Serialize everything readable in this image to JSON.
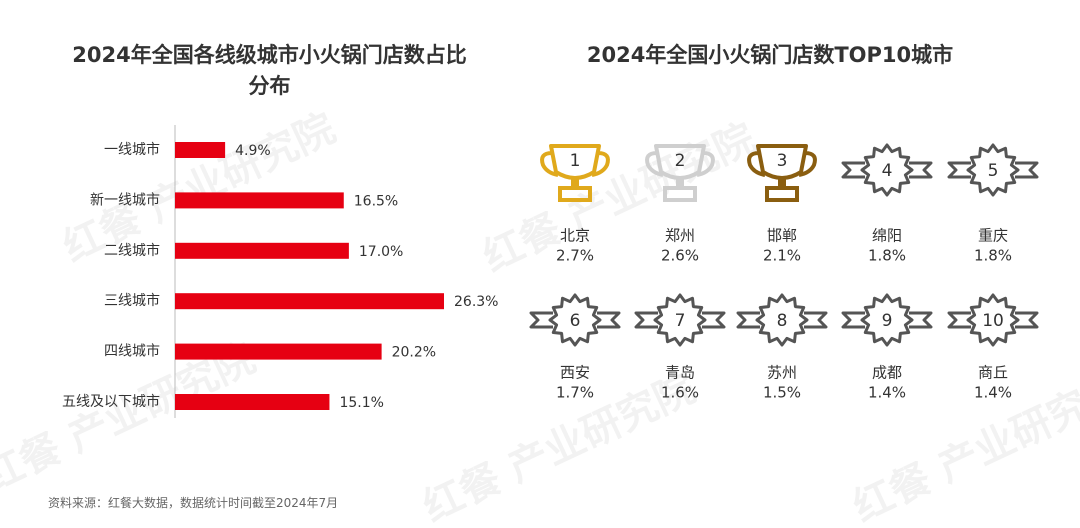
{
  "chart_data": {
    "type": "hbar",
    "title": "2024年全国各线级城市小火锅门店数占比分布",
    "categories": [
      "一线城市",
      "新一线城市",
      "二线城市",
      "三线城市",
      "四线城市",
      "五线及以下城市"
    ],
    "values": [
      4.9,
      16.5,
      17.0,
      26.3,
      20.2,
      15.1
    ],
    "value_labels": [
      "4.9%",
      "16.5%",
      "17.0%",
      "26.3%",
      "20.2%",
      "15.1%"
    ],
    "color": "#e60012"
  },
  "ranking": {
    "title": "2024年全国小火锅门店数TOP10城市",
    "items": [
      {
        "rank": 1,
        "city": "北京",
        "share": "2.7%",
        "color": "#e0a91c"
      },
      {
        "rank": 2,
        "city": "郑州",
        "share": "2.6%",
        "color": "#cfcfcf"
      },
      {
        "rank": 3,
        "city": "邯郸",
        "share": "2.1%",
        "color": "#8a5e10"
      },
      {
        "rank": 4,
        "city": "绵阳",
        "share": "1.8%",
        "color": "#555555"
      },
      {
        "rank": 5,
        "city": "重庆",
        "share": "1.8%",
        "color": "#555555"
      },
      {
        "rank": 6,
        "city": "西安",
        "share": "1.7%",
        "color": "#555555"
      },
      {
        "rank": 7,
        "city": "青岛",
        "share": "1.6%",
        "color": "#555555"
      },
      {
        "rank": 8,
        "city": "苏州",
        "share": "1.5%",
        "color": "#555555"
      },
      {
        "rank": 9,
        "city": "成都",
        "share": "1.4%",
        "color": "#555555"
      },
      {
        "rank": 10,
        "city": "商丘",
        "share": "1.4%",
        "color": "#555555"
      }
    ]
  },
  "watermark": "红餐 产业研究院",
  "source": "资料来源：红餐大数据，数据统计时间截至2024年7月"
}
